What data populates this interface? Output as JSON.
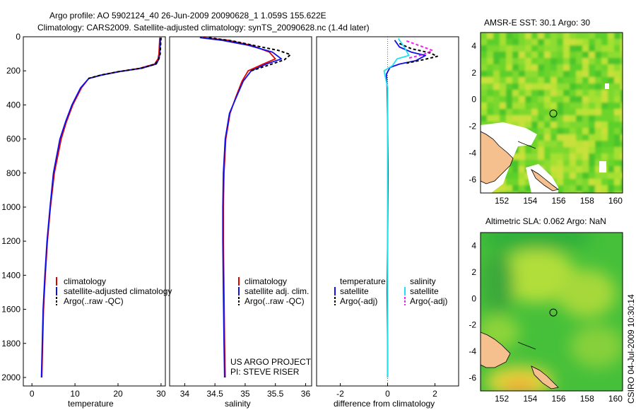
{
  "header": {
    "line1": "Argo profile: AO 5902124_40 26-Jun-2009 20090628_1 1.059S 155.622E",
    "line2": "Climatology: CARS2009. Satellite-adjusted climatology: synTS_20090628.nc (1.4d later)"
  },
  "colors": {
    "red": "#e00000",
    "blue": "#1010e8",
    "black": "#000000",
    "cyan": "#20e0f0",
    "magenta": "#f020f0",
    "land": "#f5c08e"
  },
  "chart_data": [
    {
      "id": "temperature",
      "type": "line",
      "xlabel": "temperature",
      "xlim": [
        -2,
        31
      ],
      "ylim": [
        2050,
        0
      ],
      "xticks": [
        "0",
        "10",
        "20",
        "30"
      ],
      "yticks": [
        "0",
        "200",
        "400",
        "600",
        "800",
        "1000",
        "1200",
        "1400",
        "1600",
        "1800",
        "2000"
      ],
      "series": [
        {
          "name": "climatology",
          "color": "red",
          "style": "solid",
          "x": [
            29.7,
            29.6,
            29.5,
            29.3,
            28.5,
            25,
            20,
            16,
            13.2,
            11.5,
            9.5,
            8,
            6.8,
            5.2,
            4.3,
            3.6,
            3.1,
            2.7,
            2.5,
            2.3
          ],
          "y": [
            5,
            50,
            100,
            130,
            160,
            185,
            205,
            225,
            245,
            300,
            400,
            500,
            600,
            800,
            1000,
            1200,
            1400,
            1600,
            1800,
            2000
          ]
        },
        {
          "name": "satellite-adjusted climatology",
          "color": "blue",
          "style": "solid",
          "x": [
            29.9,
            29.8,
            29.7,
            29.5,
            28.9,
            25.5,
            20.3,
            16.2,
            13.2,
            11.3,
            9.3,
            7.8,
            6.5,
            5.0,
            4.2,
            3.5,
            3.0,
            2.6,
            2.4,
            2.2
          ],
          "y": [
            5,
            50,
            100,
            130,
            160,
            185,
            205,
            225,
            245,
            300,
            400,
            500,
            600,
            800,
            1000,
            1200,
            1400,
            1600,
            1800,
            2000
          ]
        },
        {
          "name": "Argo(..raw -QC)",
          "color": "black",
          "style": "dashed",
          "x": [
            30.0,
            29.9,
            29.8,
            29.5,
            28.7,
            25.3,
            20.1,
            16.0,
            13.1
          ],
          "y": [
            5,
            50,
            100,
            130,
            160,
            185,
            205,
            225,
            245
          ]
        }
      ],
      "legend": [
        "climatology",
        "satellite-adjusted climatology",
        "Argo(..raw -QC)"
      ],
      "annotation": []
    },
    {
      "id": "salinity",
      "type": "line",
      "xlabel": "salinity",
      "xlim": [
        33.75,
        36.1
      ],
      "ylim": [
        2050,
        0
      ],
      "xticks": [
        "34",
        "34.5",
        "35",
        "35.5",
        "36"
      ],
      "yticks": [],
      "series": [
        {
          "name": "climatology",
          "color": "red",
          "style": "solid",
          "x": [
            34.3,
            34.7,
            35.1,
            35.4,
            35.5,
            35.3,
            35.05,
            34.95,
            34.85,
            34.75,
            34.68,
            34.65,
            34.64,
            34.64,
            34.65,
            34.66,
            34.67
          ],
          "y": [
            5,
            20,
            50,
            90,
            130,
            160,
            200,
            260,
            350,
            450,
            600,
            800,
            1000,
            1200,
            1500,
            1800,
            2000
          ]
        },
        {
          "name": "satellite adj. clim.",
          "color": "blue",
          "style": "solid",
          "x": [
            34.25,
            34.6,
            35.05,
            35.45,
            35.6,
            35.35,
            35.1,
            34.97,
            34.86,
            34.74,
            34.67,
            34.64,
            34.63,
            34.63,
            34.64,
            34.65,
            34.66
          ],
          "y": [
            5,
            20,
            50,
            90,
            130,
            160,
            200,
            260,
            350,
            450,
            600,
            800,
            1000,
            1200,
            1500,
            1800,
            2000
          ]
        },
        {
          "name": "Argo(..raw -QC)",
          "color": "black",
          "style": "dashed",
          "x": [
            34.4,
            34.8,
            35.2,
            35.55,
            35.75,
            35.65,
            35.4,
            35.1
          ],
          "y": [
            5,
            25,
            55,
            80,
            105,
            135,
            165,
            200
          ]
        }
      ],
      "legend": [
        "climatology",
        "satellite adj. clim.",
        "Argo(..raw -QC)"
      ],
      "annotation": [
        "US ARGO PROJECT",
        "PI: STEVE RISER"
      ]
    },
    {
      "id": "difference",
      "type": "line",
      "xlabel": "difference from climatology",
      "xlim": [
        -3,
        3
      ],
      "ylim": [
        2050,
        0
      ],
      "xticks": [
        "-2",
        "0",
        "2"
      ],
      "yticks": [],
      "series": [
        {
          "name": "temperature satellite",
          "color": "blue",
          "style": "solid",
          "x": [
            0.3,
            0.5,
            1.0,
            1.6,
            1.2,
            0.5,
            0.1,
            -0.05,
            -0.02,
            0.0,
            0.02,
            0.0,
            -0.02,
            0.0,
            0.0
          ],
          "y": [
            20,
            60,
            90,
            110,
            140,
            160,
            180,
            220,
            300,
            500,
            800,
            1200,
            1500,
            1800,
            2000
          ]
        },
        {
          "name": "temperature Argo(-adj)",
          "color": "black",
          "style": "dashed",
          "x": [
            0.5,
            1.0,
            1.8,
            2.1,
            1.5,
            0.8
          ],
          "y": [
            40,
            70,
            95,
            115,
            135,
            155
          ]
        },
        {
          "name": "salinity satellite",
          "color": "cyan",
          "style": "solid",
          "x": [
            0.45,
            0.7,
            0.9,
            0.4,
            0.2,
            -0.15,
            0.0,
            0.0,
            0.0,
            0.0
          ],
          "y": [
            10,
            60,
            110,
            130,
            170,
            200,
            300,
            600,
            1000,
            2000
          ]
        },
        {
          "name": "salinity Argo(-adj)",
          "color": "magenta",
          "style": "dashed",
          "x": [
            0.8,
            1.3,
            1.9,
            1.5,
            0.9
          ],
          "y": [
            25,
            50,
            80,
            105,
            125
          ]
        }
      ],
      "legend": [],
      "legend_groups": {
        "temperature": {
          "title": "temperature",
          "items": [
            "satellite",
            "Argo(-adj)"
          ]
        },
        "salinity": {
          "title": "salinity",
          "items": [
            "satellite",
            "Argo(-adj)"
          ]
        }
      },
      "annotation": []
    },
    {
      "id": "sst_map",
      "type": "heatmap",
      "title": "AMSR-E SST: 30.1 Argo: 30",
      "xlim": [
        150.5,
        160.5
      ],
      "ylim": [
        -7,
        5
      ],
      "xticks": [
        "152",
        "154",
        "156",
        "158",
        "160"
      ],
      "yticks": [
        "4",
        "2",
        "0",
        "-2",
        "-4",
        "-6"
      ],
      "argo_position": {
        "lon": 155.622,
        "lat": -1.059
      }
    },
    {
      "id": "sla_map",
      "type": "heatmap",
      "title": "Altimetric SLA: 0.062 Argo: NaN",
      "xlim": [
        150.5,
        160.5
      ],
      "ylim": [
        -7,
        5
      ],
      "xticks": [
        "152",
        "154",
        "156",
        "158",
        "160"
      ],
      "yticks": [
        "4",
        "2",
        "0",
        "-2",
        "-4",
        "-6"
      ],
      "argo_position": {
        "lon": 155.622,
        "lat": -1.059
      }
    }
  ],
  "footer": {
    "side_stamp": "CSIRO 04-Jul-2009 10:30:14"
  }
}
